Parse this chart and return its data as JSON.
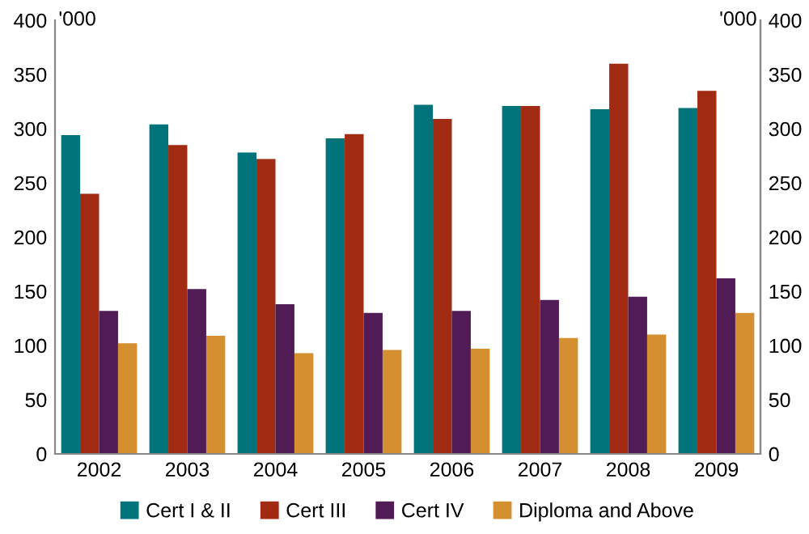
{
  "chart_data": {
    "type": "bar",
    "ylabel": "'000",
    "y2label": "'000",
    "categories": [
      "2002",
      "2003",
      "2004",
      "2005",
      "2006",
      "2007",
      "2008",
      "2009"
    ],
    "series": [
      {
        "name": "Cert I & II",
        "color": "#00747a",
        "values": [
          294,
          304,
          278,
          291,
          322,
          321,
          318,
          319
        ]
      },
      {
        "name": "Cert III",
        "color": "#a12a12",
        "values": [
          240,
          285,
          272,
          295,
          309,
          321,
          360,
          335
        ]
      },
      {
        "name": "Cert IV",
        "color": "#511c56",
        "values": [
          132,
          152,
          138,
          130,
          132,
          142,
          145,
          162
        ]
      },
      {
        "name": "Diploma and Above",
        "color": "#d38f30",
        "values": [
          102,
          109,
          93,
          96,
          97,
          107,
          110,
          130
        ]
      }
    ],
    "ylim": [
      0,
      400
    ],
    "yticks": [
      0,
      50,
      100,
      150,
      200,
      250,
      300,
      350,
      400
    ],
    "y2lim": [
      0,
      400
    ],
    "y2ticks": [
      0,
      50,
      100,
      150,
      200,
      250,
      300,
      350,
      400
    ],
    "grid": false,
    "legend": "bottom"
  }
}
